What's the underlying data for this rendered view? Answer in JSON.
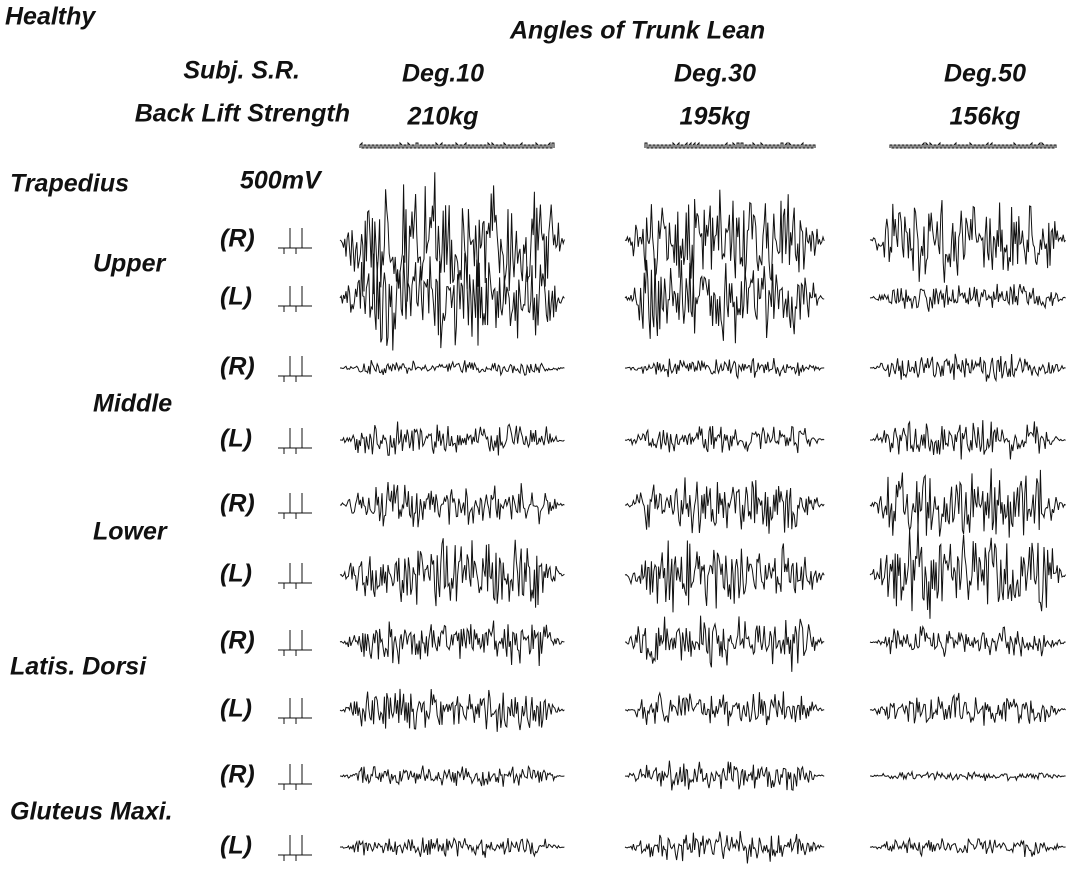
{
  "group": "Healthy",
  "title": "Angles of Trunk Lean",
  "subject_label": "Subj. S.R.",
  "strength_label": "Back Lift Strength",
  "scale": "500mV",
  "columns": [
    {
      "angle": "Deg.10",
      "strength": "210kg"
    },
    {
      "angle": "Deg.30",
      "strength": "195kg"
    },
    {
      "angle": "Deg.50",
      "strength": "156kg"
    }
  ],
  "muscles": [
    {
      "name": "Trapedius"
    },
    {
      "name": "Upper"
    },
    {
      "name": "Middle"
    },
    {
      "name": "Lower"
    },
    {
      "name": "Latis. Dorsi"
    },
    {
      "name": "Gluteus Maxi."
    }
  ],
  "rows": [
    {
      "side": "(R)"
    },
    {
      "side": "(L)"
    },
    {
      "side": "(R)"
    },
    {
      "side": "(L)"
    },
    {
      "side": "(R)"
    },
    {
      "side": "(L)"
    },
    {
      "side": "(R)"
    },
    {
      "side": "(L)"
    },
    {
      "side": "(R)"
    },
    {
      "side": "(L)"
    }
  ]
}
